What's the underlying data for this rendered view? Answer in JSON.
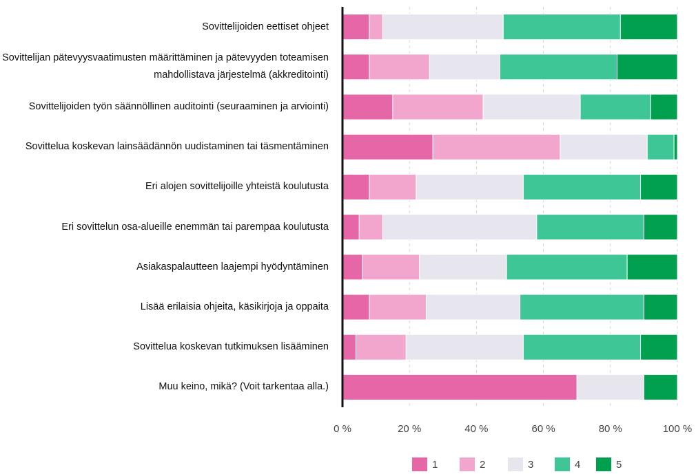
{
  "chart_data": {
    "type": "stacked_barh",
    "categories": [
      "Sovittelijoiden eettiset ohjeet",
      "Sovittelijan pätevyysvaatimusten määrittäminen ja pätevyyden toteamisen mahdollistava järjestelmä (akkreditointi)",
      "Sovittelijoiden työn säännöllinen auditointi (seuraaminen ja arviointi)",
      "Sovittelua koskevan lainsäädännön uudistaminen tai täsmentäminen",
      "Eri alojen sovittelijoille yhteistä koulutusta",
      "Eri sovittelun osa-alueille enemmän tai parempaa koulutusta",
      "Asiakaspalautteen laajempi hyödyntäminen",
      "Lisää erilaisia ohjeita, käsikirjoja ja oppaita",
      "Sovittelua koskevan tutkimuksen lisääminen",
      "Muu keino, mikä? (Voit tarkentaa alla.)"
    ],
    "series": [
      {
        "name": "1",
        "color": "#e667a8",
        "values": [
          8,
          8,
          15,
          27,
          8,
          5,
          6,
          8,
          4,
          70
        ]
      },
      {
        "name": "2",
        "color": "#f2a6cd",
        "values": [
          4,
          18,
          27,
          38,
          14,
          7,
          17,
          17,
          15,
          0
        ]
      },
      {
        "name": "3",
        "color": "#e7e5ed",
        "values": [
          36,
          21,
          29,
          26,
          32,
          46,
          26,
          28,
          35,
          20
        ]
      },
      {
        "name": "4",
        "color": "#3ec697",
        "values": [
          35,
          35,
          21,
          8,
          35,
          32,
          36,
          37,
          35,
          0
        ]
      },
      {
        "name": "5",
        "color": "#00a04f",
        "values": [
          17,
          18,
          8,
          1,
          11,
          10,
          15,
          10,
          11,
          10
        ]
      }
    ],
    "xlim": [
      0,
      100
    ],
    "xticks": [
      {
        "value": 0,
        "label": "0 %"
      },
      {
        "value": 20,
        "label": "20 %"
      },
      {
        "value": 40,
        "label": "40 %"
      },
      {
        "value": 60,
        "label": "60 %"
      },
      {
        "value": 80,
        "label": "80 %"
      },
      {
        "value": 100,
        "label": "100 %"
      }
    ],
    "grid": true,
    "legend": "bottom"
  }
}
